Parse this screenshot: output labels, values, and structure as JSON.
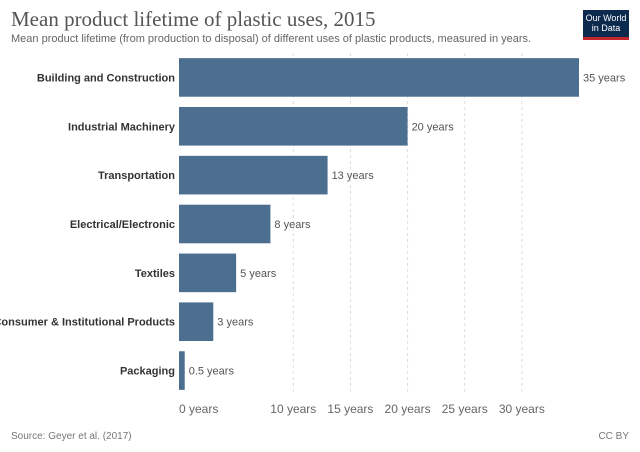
{
  "header": {
    "title": "Mean product lifetime of plastic uses, 2015",
    "subtitle": "Mean product lifetime (from production to disposal) of different uses of plastic products, measured in years."
  },
  "logo": {
    "line1": "Our World",
    "line2": "in Data",
    "colors": {
      "background": "#0b2a4e",
      "accent": "#c4262e"
    }
  },
  "footer": {
    "source": "Source: Geyer et al. (2017)",
    "license": "CC BY"
  },
  "chart_data": {
    "type": "bar",
    "orientation": "horizontal",
    "categories": [
      "Building and Construction",
      "Industrial Machinery",
      "Transportation",
      "Electrical/Electronic",
      "Textiles",
      "Consumer & Institutional Products",
      "Packaging"
    ],
    "values": [
      35,
      20,
      13,
      8,
      5,
      3,
      0.5
    ],
    "value_labels": [
      "35 years",
      "20 years",
      "13 years",
      "8 years",
      "5 years",
      "3 years",
      "0.5 years"
    ],
    "x_ticks": [
      0,
      10,
      15,
      20,
      25,
      30
    ],
    "x_tick_labels": [
      "0 years",
      "10 years",
      "15 years",
      "20 years",
      "25 years",
      "30 years"
    ],
    "xlim": [
      0,
      35
    ],
    "grid": true,
    "bar_color": "#4c6e8f"
  }
}
